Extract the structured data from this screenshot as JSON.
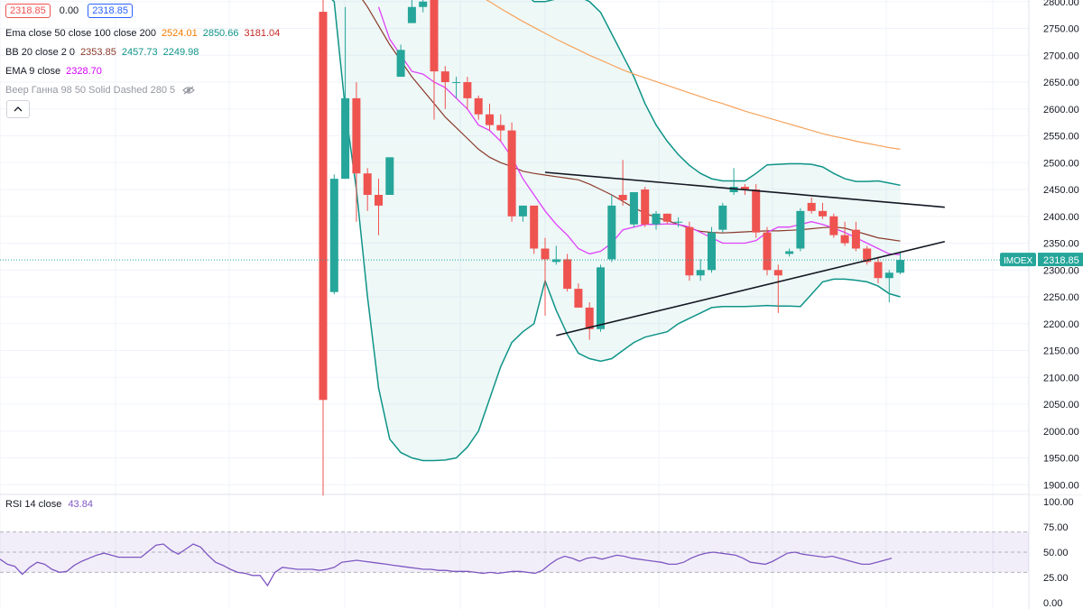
{
  "legend": {
    "price1": "2318.85",
    "change": "0.00",
    "price2": "2318.85",
    "ema_name": "Ema close 50 close 100 close 200",
    "ema_v1": "2524.01",
    "ema_v2": "2850.66",
    "ema_v3": "3181.04",
    "bb_name": "BB 20 close 2 0",
    "bb_v1": "2353.85",
    "bb_v2": "2457.73",
    "bb_v3": "2249.98",
    "ema9_name": "EMA 9 close",
    "ema9_v": "2328.70",
    "gann_name": "Веер Ганна 98 50 Solid Dashed 280 5",
    "rsi_name": "RSI 14 close",
    "rsi_v": "43.84",
    "icons": {
      "eye": "eye-hidden-icon",
      "collapse": "chevron-up-icon"
    }
  },
  "colors": {
    "up": "#26a69a",
    "down": "#ef5350",
    "ema50": "#f7a35c",
    "bb_basis": "#8b3a2a",
    "bb_band": "#0f9488",
    "ema9": "#e040fb",
    "rsi": "#7e57c2",
    "grid": "#f0f3fa",
    "red_box": "#ef5350",
    "blue_box": "#2962ff",
    "orange_text": "#f57c00",
    "green_text": "#0f9488",
    "brown_text": "#8b3a2a",
    "teal_text": "#26a69a",
    "magenta_text": "#d500f9",
    "gray_text": "#9598a1",
    "purple_text": "#7e57c2",
    "price_tag": "#26a69a"
  },
  "chart_data": [
    {
      "type": "candlestick",
      "symbol_label": "IMOEX",
      "last_price_label": "2318.85",
      "last_price": 2318.85,
      "y_ticks": [
        2800,
        2750,
        2700,
        2650,
        2600,
        2550,
        2500,
        2450,
        2400,
        2350,
        2300,
        2250,
        2200,
        2150,
        2100,
        2050,
        2000,
        1950,
        1900
      ],
      "y_tick_labels": [
        "2800.00",
        "2750.00",
        "2700.00",
        "2650.00",
        "2600.00",
        "2550.00",
        "2500.00",
        "2450.00",
        "2400.00",
        "2350.00",
        "2300.00",
        "2250.00",
        "2200.00",
        "2150.00",
        "2100.00",
        "2050.00",
        "2000.00",
        "1950.00",
        "1900.00"
      ],
      "ylim": [
        1882,
        2803
      ],
      "candles": [
        {
          "o": 2781,
          "h": 2810,
          "l": 1880,
          "c": 2058
        },
        {
          "o": 2259,
          "h": 2478,
          "l": 2255,
          "c": 2470
        },
        {
          "o": 2470,
          "h": 2790,
          "l": 2470,
          "c": 2620
        },
        {
          "o": 2620,
          "h": 2650,
          "l": 2390,
          "c": 2480
        },
        {
          "o": 2480,
          "h": 2490,
          "l": 2410,
          "c": 2440
        },
        {
          "o": 2440,
          "h": 2470,
          "l": 2365,
          "c": 2420
        },
        {
          "o": 2440,
          "h": 2510,
          "l": 2440,
          "c": 2510
        },
        {
          "o": 2660,
          "h": 2720,
          "l": 2660,
          "c": 2710
        },
        {
          "o": 2760,
          "h": 2820,
          "l": 2760,
          "c": 2790
        },
        {
          "o": 2790,
          "h": 2820,
          "l": 2780,
          "c": 2800
        },
        {
          "o": 2803,
          "h": 2810,
          "l": 2580,
          "c": 2670
        },
        {
          "o": 2670,
          "h": 2680,
          "l": 2600,
          "c": 2650
        },
        {
          "o": 2650,
          "h": 2660,
          "l": 2620,
          "c": 2650
        },
        {
          "o": 2650,
          "h": 2660,
          "l": 2600,
          "c": 2620
        },
        {
          "o": 2620,
          "h": 2625,
          "l": 2580,
          "c": 2590
        },
        {
          "o": 2590,
          "h": 2610,
          "l": 2560,
          "c": 2570
        },
        {
          "o": 2570,
          "h": 2590,
          "l": 2540,
          "c": 2560
        },
        {
          "o": 2560,
          "h": 2575,
          "l": 2390,
          "c": 2400
        },
        {
          "o": 2400,
          "h": 2420,
          "l": 2390,
          "c": 2420
        },
        {
          "o": 2420,
          "h": 2420,
          "l": 2330,
          "c": 2340
        },
        {
          "o": 2340,
          "h": 2360,
          "l": 2215,
          "c": 2320
        },
        {
          "o": 2315,
          "h": 2345,
          "l": 2310,
          "c": 2320
        },
        {
          "o": 2320,
          "h": 2330,
          "l": 2260,
          "c": 2265
        },
        {
          "o": 2265,
          "h": 2275,
          "l": 2230,
          "c": 2230
        },
        {
          "o": 2230,
          "h": 2240,
          "l": 2170,
          "c": 2190
        },
        {
          "o": 2190,
          "h": 2310,
          "l": 2185,
          "c": 2305
        },
        {
          "o": 2320,
          "h": 2440,
          "l": 2315,
          "c": 2420
        },
        {
          "o": 2440,
          "h": 2505,
          "l": 2420,
          "c": 2430
        },
        {
          "o": 2385,
          "h": 2445,
          "l": 2380,
          "c": 2445
        },
        {
          "o": 2450,
          "h": 2455,
          "l": 2380,
          "c": 2385
        },
        {
          "o": 2385,
          "h": 2410,
          "l": 2375,
          "c": 2405
        },
        {
          "o": 2405,
          "h": 2405,
          "l": 2385,
          "c": 2390
        },
        {
          "o": 2390,
          "h": 2398,
          "l": 2380,
          "c": 2390
        },
        {
          "o": 2380,
          "h": 2390,
          "l": 2280,
          "c": 2290
        },
        {
          "o": 2290,
          "h": 2320,
          "l": 2280,
          "c": 2300
        },
        {
          "o": 2300,
          "h": 2380,
          "l": 2295,
          "c": 2370
        },
        {
          "o": 2375,
          "h": 2425,
          "l": 2370,
          "c": 2420
        },
        {
          "o": 2445,
          "h": 2490,
          "l": 2440,
          "c": 2455
        },
        {
          "o": 2455,
          "h": 2460,
          "l": 2440,
          "c": 2450
        },
        {
          "o": 2450,
          "h": 2460,
          "l": 2360,
          "c": 2370
        },
        {
          "o": 2370,
          "h": 2380,
          "l": 2290,
          "c": 2300
        },
        {
          "o": 2300,
          "h": 2310,
          "l": 2220,
          "c": 2290
        },
        {
          "o": 2330,
          "h": 2340,
          "l": 2325,
          "c": 2335
        },
        {
          "o": 2340,
          "h": 2415,
          "l": 2335,
          "c": 2410
        },
        {
          "o": 2425,
          "h": 2435,
          "l": 2405,
          "c": 2410
        },
        {
          "o": 2410,
          "h": 2425,
          "l": 2395,
          "c": 2400
        },
        {
          "o": 2400,
          "h": 2405,
          "l": 2360,
          "c": 2365
        },
        {
          "o": 2365,
          "h": 2390,
          "l": 2345,
          "c": 2350
        },
        {
          "o": 2375,
          "h": 2390,
          "l": 2335,
          "c": 2340
        },
        {
          "o": 2340,
          "h": 2345,
          "l": 2310,
          "c": 2315
        },
        {
          "o": 2315,
          "h": 2325,
          "l": 2275,
          "c": 2285
        },
        {
          "o": 2285,
          "h": 2300,
          "l": 2240,
          "c": 2295
        },
        {
          "o": 2295,
          "h": 2335,
          "l": 2292,
          "c": 2318.85
        }
      ],
      "ema50": [
        2925,
        2915,
        2905,
        2895,
        2884,
        2873,
        2862,
        2850,
        2838,
        2825,
        2812,
        2800,
        2787,
        2775,
        2763,
        2752,
        2741,
        2730,
        2720,
        2710,
        2700,
        2691,
        2682,
        2673,
        2665,
        2658,
        2651,
        2644,
        2637,
        2630,
        2623,
        2616,
        2610,
        2603,
        2596,
        2590,
        2584,
        2578,
        2572,
        2566,
        2560,
        2554,
        2549,
        2545,
        2540,
        2536,
        2532,
        2528,
        2525
      ],
      "bb_basis": [
        2900,
        2880,
        2850,
        2820,
        2790,
        2755,
        2720,
        2690,
        2660,
        2635,
        2610,
        2585,
        2565,
        2545,
        2525,
        2510,
        2500,
        2493,
        2484,
        2480,
        2477,
        2474,
        2471,
        2468,
        2460,
        2450,
        2440,
        2428,
        2416,
        2406,
        2398,
        2392,
        2385,
        2378,
        2372,
        2370,
        2369,
        2370,
        2371,
        2372,
        2373,
        2373,
        2374,
        2375,
        2377,
        2379,
        2380,
        2378,
        2372,
        2366,
        2360,
        2357,
        2354
      ],
      "bb_upper": [
        2820,
        2860,
        2900,
        2950,
        3000,
        3050,
        3100,
        3100,
        3100,
        3100,
        3100,
        3100,
        3080,
        3050,
        3000,
        2950,
        2900,
        2850,
        2820,
        2800,
        2800,
        2805,
        2810,
        2810,
        2800,
        2780,
        2740,
        2700,
        2660,
        2610,
        2570,
        2540,
        2515,
        2495,
        2480,
        2470,
        2466,
        2466,
        2466,
        2480,
        2496,
        2497,
        2498,
        2498,
        2497,
        2492,
        2480,
        2470,
        2465,
        2465,
        2466,
        2462,
        2458
      ],
      "bb_lower": [
        2820,
        2800,
        2600,
        2450,
        2250,
        2080,
        1985,
        1960,
        1950,
        1945,
        1945,
        1946,
        1950,
        1970,
        2000,
        2060,
        2120,
        2165,
        2185,
        2200,
        2280,
        2225,
        2180,
        2145,
        2135,
        2130,
        2135,
        2150,
        2165,
        2175,
        2180,
        2185,
        2200,
        2210,
        2220,
        2230,
        2232,
        2232,
        2232,
        2233,
        2234,
        2233,
        2233,
        2232,
        2255,
        2278,
        2283,
        2283,
        2281,
        2278,
        2270,
        2256,
        2250
      ],
      "ema9": [
        2790,
        2730,
        2700,
        2670,
        2665,
        2650,
        2640,
        2620,
        2600,
        2570,
        2560,
        2540,
        2510,
        2470,
        2440,
        2410,
        2385,
        2365,
        2340,
        2330,
        2335,
        2350,
        2375,
        2380,
        2385,
        2385,
        2386,
        2385,
        2380,
        2370,
        2360,
        2350,
        2350,
        2350,
        2355,
        2370,
        2380,
        2380,
        2385,
        2390,
        2385,
        2378,
        2370,
        2360,
        2350,
        2340,
        2330,
        2328.7
      ],
      "trend_upper": [
        [
          20,
          2482
        ],
        [
          56,
          2417
        ]
      ],
      "trend_lower": [
        [
          21,
          2178
        ],
        [
          56,
          2353
        ]
      ]
    },
    {
      "type": "line",
      "name": "RSI 14 close",
      "y_ticks": [
        100,
        75,
        50,
        25,
        0
      ],
      "y_tick_labels": [
        "100.00",
        "75.00",
        "50.00",
        "25.00",
        "0.00"
      ],
      "band": [
        30,
        70
      ],
      "midline": 50,
      "values": [
        43,
        38,
        36,
        28,
        35,
        40,
        38,
        33,
        30,
        31,
        37,
        41,
        44,
        47,
        49,
        47,
        45,
        45,
        45,
        45,
        51,
        57,
        58,
        52,
        48,
        53,
        58,
        55,
        47,
        40,
        37,
        33,
        30,
        29,
        27,
        27,
        17,
        30,
        35,
        34,
        33,
        33,
        33,
        32,
        33,
        35,
        40,
        41,
        42,
        41,
        40,
        39,
        38,
        37,
        36,
        35,
        34,
        33,
        33,
        32,
        32,
        31,
        31,
        31,
        30,
        29,
        30,
        29,
        30,
        31,
        31,
        30,
        29,
        32,
        38,
        43,
        46,
        44,
        41,
        44,
        45,
        43,
        45,
        47,
        46,
        44,
        43,
        42,
        41,
        40,
        38,
        38,
        40,
        44,
        47,
        49,
        50,
        49,
        48,
        47,
        44,
        40,
        39,
        38,
        41,
        45,
        49,
        50,
        48,
        47,
        46,
        45,
        46,
        44,
        42,
        40,
        38,
        38,
        40,
        42,
        44
      ]
    }
  ]
}
